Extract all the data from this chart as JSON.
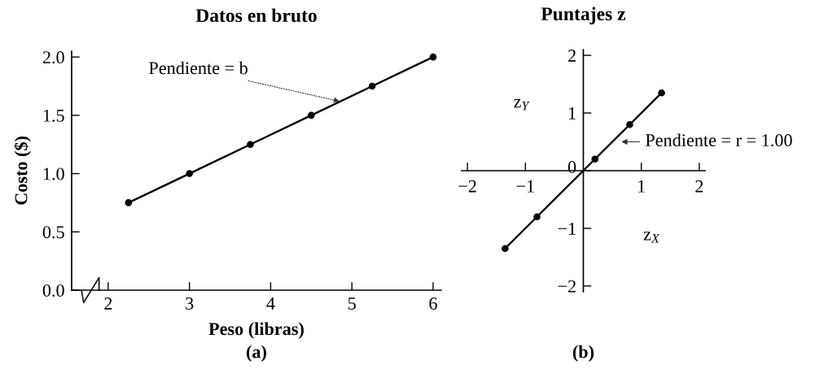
{
  "chart_data": [
    {
      "type": "line",
      "title": "Datos en bruto",
      "xlabel": "Peso (libras)",
      "ylabel": "Costo ($)",
      "x": [
        2.25,
        3,
        3.75,
        4.5,
        5.25,
        6
      ],
      "values": [
        0.75,
        1.0,
        1.25,
        1.5,
        1.75,
        2.0
      ],
      "color": "#000000",
      "marker": "circle",
      "line_style": "solid",
      "grid": false,
      "xlim": [
        1.55,
        6.1
      ],
      "ylim": [
        0,
        2.05
      ],
      "xticks": [
        2,
        3,
        4,
        5,
        6
      ],
      "yticks": [
        {
          "value": 0,
          "label": "0.0"
        },
        0.5,
        {
          "value": 1,
          "label": "1.0"
        },
        1.5,
        {
          "value": 2,
          "label": "2.0"
        }
      ],
      "annotations": [
        {
          "text": "Pendiente = b",
          "x": 4.85,
          "y": 1.62
        },
        "(a)"
      ]
    },
    {
      "type": "line",
      "title": "Puntajes z",
      "xlabel": "z$_{X}$",
      "ylabel": "z$_{Y}$",
      "x": [
        -1.35,
        -0.8,
        0.2,
        0.8,
        1.35
      ],
      "values": [
        -1.35,
        -0.8,
        0.2,
        0.8,
        1.35
      ],
      "color": "#000000",
      "marker": "circle",
      "line_style": "solid",
      "grid": false,
      "xlim": [
        -2.1,
        2.1
      ],
      "ylim": [
        -2.1,
        2.1
      ],
      "xticks": [
        {
          "value": -2,
          "label": "−2"
        },
        {
          "value": -1,
          "label": "−1"
        },
        1,
        2
      ],
      "yticks": [
        {
          "value": -2,
          "label": "−2"
        },
        {
          "value": -1,
          "label": "−1"
        },
        0,
        1,
        2
      ],
      "annotations": [
        {
          "text": "Pendiente = r = 1.00",
          "x": 0.5,
          "y": 0.5
        },
        "(b)"
      ]
    }
  ]
}
